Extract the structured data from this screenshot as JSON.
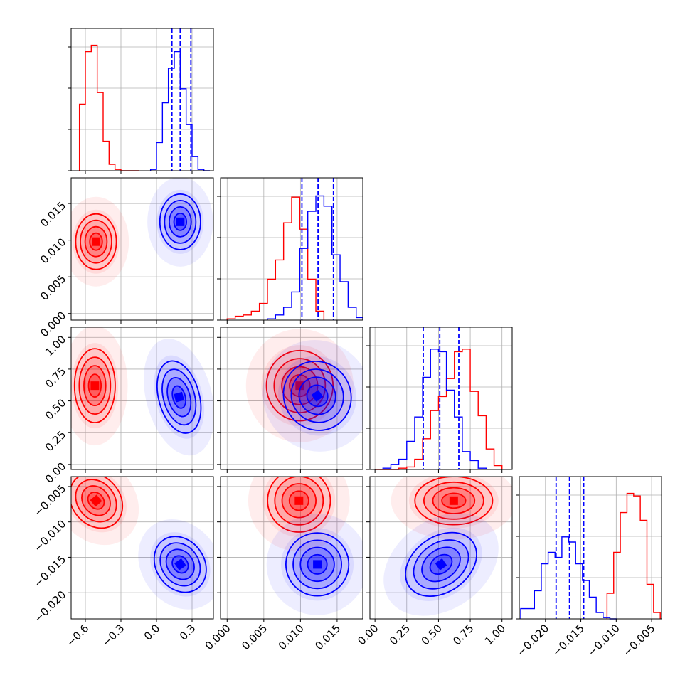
{
  "chart_data": {
    "type": "corner",
    "grid": true,
    "colors": {
      "red": "#ff0000",
      "blue": "#0000ff"
    },
    "series": [
      {
        "color": "#ff0000",
        "hist": [
          {
            "bins": [
              -0.65,
              -0.6,
              -0.55,
              -0.5,
              -0.45,
              -0.4,
              -0.35,
              -0.3,
              -0.25,
              -0.2,
              -0.15
            ],
            "counts": [
              0.52,
              0.93,
              0.98,
              0.61,
              0.23,
              0.05,
              0.01,
              0,
              0,
              0
            ]
          },
          {
            "bins": [
              0,
              0.0011,
              0.0022,
              0.0033,
              0.0044,
              0.0055,
              0.0066,
              0.0077,
              0.0088,
              0.0099,
              0.011,
              0.0121,
              0.0132
            ],
            "counts": [
              0.01,
              0.03,
              0.04,
              0.07,
              0.13,
              0.32,
              0.47,
              0.76,
              0.96,
              0.71,
              0.32,
              0.07
            ]
          },
          {
            "bins": [
              0,
              0.0625,
              0.125,
              0.1875,
              0.25,
              0.3125,
              0.375,
              0.4375,
              0.5,
              0.5625,
              0.625,
              0.6875,
              0.75,
              0.8125,
              0.875,
              0.9375,
              1.0
            ],
            "counts": [
              0,
              0,
              0,
              0.01,
              0.02,
              0.08,
              0.24,
              0.46,
              0.57,
              0.71,
              0.92,
              0.94,
              0.61,
              0.42,
              0.16,
              0.03
            ]
          },
          {
            "bins": [
              -0.0113,
              -0.01036,
              -0.00942,
              -0.00848,
              -0.00754,
              -0.0066,
              -0.00566,
              -0.00472,
              -0.00378
            ],
            "counts": [
              0.2,
              0.52,
              0.83,
              0.98,
              0.96,
              0.77,
              0.27,
              0.05
            ]
          }
        ],
        "centers": [
          [
            -0.51,
            0.0098
          ],
          [
            -0.52,
            0.62
          ],
          [
            0.0099,
            0.62
          ],
          [
            -0.51,
            -0.007
          ],
          [
            0.0098,
            -0.007
          ],
          [
            0.62,
            -0.007
          ]
        ]
      },
      {
        "color": "#0000ff",
        "hist": [
          {
            "bins": [
              -0.05,
              0.0,
              0.05,
              0.1,
              0.15,
              0.2,
              0.25,
              0.3,
              0.35,
              0.4,
              0.45
            ],
            "counts": [
              0.01,
              0.22,
              0.53,
              0.8,
              0.93,
              0.64,
              0.36,
              0.11,
              0.01,
              0
            ]
          },
          {
            "bins": [
              0.0055,
              0.0066,
              0.0077,
              0.0088,
              0.0099,
              0.011,
              0.0121,
              0.0132,
              0.0143,
              0.0154,
              0.0165,
              0.0176,
              0.0187
            ],
            "counts": [
              0.01,
              0.04,
              0.1,
              0.22,
              0.56,
              0.85,
              0.97,
              0.89,
              0.51,
              0.3,
              0.1,
              0.02
            ]
          },
          {
            "bins": [
              0.0625,
              0.125,
              0.1875,
              0.25,
              0.3125,
              0.375,
              0.4375,
              0.5,
              0.5625,
              0.625,
              0.6875,
              0.75,
              0.8125,
              0.875
            ],
            "counts": [
              0.01,
              0.04,
              0.08,
              0.22,
              0.41,
              0.72,
              0.94,
              0.92,
              0.62,
              0.41,
              0.14,
              0.07,
              0.01
            ]
          },
          {
            "bins": [
              -0.0235,
              -0.02253,
              -0.02156,
              -0.02059,
              -0.01962,
              -0.01865,
              -0.01768,
              -0.01671,
              -0.01574,
              -0.01477,
              -0.0138,
              -0.01283,
              -0.01186,
              -0.01089,
              -0.00992
            ],
            "counts": [
              0.08,
              0.08,
              0.22,
              0.43,
              0.52,
              0.48,
              0.64,
              0.6,
              0.43,
              0.3,
              0.17,
              0.05,
              0.01,
              0
            ]
          }
        ],
        "centers": [
          [
            0.2,
            0.0125
          ],
          [
            0.19,
            0.53
          ],
          [
            0.0123,
            0.54
          ],
          [
            0.2,
            -0.016
          ],
          [
            0.0123,
            -0.016
          ],
          [
            0.52,
            -0.016
          ]
        ]
      }
    ],
    "quantiles": [
      [
        0.13,
        0.2,
        0.29
      ],
      [
        0.0102,
        0.0124,
        0.0145
      ],
      [
        0.38,
        0.51,
        0.66
      ],
      [
        -0.0185,
        -0.0166,
        -0.0146
      ]
    ],
    "axes": [
      {
        "range": [
          -0.72,
          0.48
        ],
        "ticks": [
          -0.6,
          -0.3,
          0.0,
          0.3
        ],
        "labels": [
          "−0.6",
          "−0.3",
          "0.0",
          "0.3"
        ]
      },
      {
        "range": [
          -0.0009,
          0.0185
        ],
        "ticks": [
          0.0,
          0.005,
          0.01,
          0.015
        ],
        "labels": [
          "0.000",
          "0.005",
          "0.010",
          "0.015"
        ]
      },
      {
        "range": [
          -0.04,
          1.08
        ],
        "ticks": [
          0.0,
          0.25,
          0.5,
          0.75,
          1.0
        ],
        "labels": [
          "0.00",
          "0.25",
          "0.50",
          "0.75",
          "1.00"
        ]
      },
      {
        "range": [
          -0.0237,
          -0.0036
        ],
        "ticks": [
          -0.02,
          -0.015,
          -0.01,
          -0.005
        ],
        "labels": [
          "−0.020",
          "−0.015",
          "−0.010",
          "−0.005"
        ]
      }
    ]
  }
}
